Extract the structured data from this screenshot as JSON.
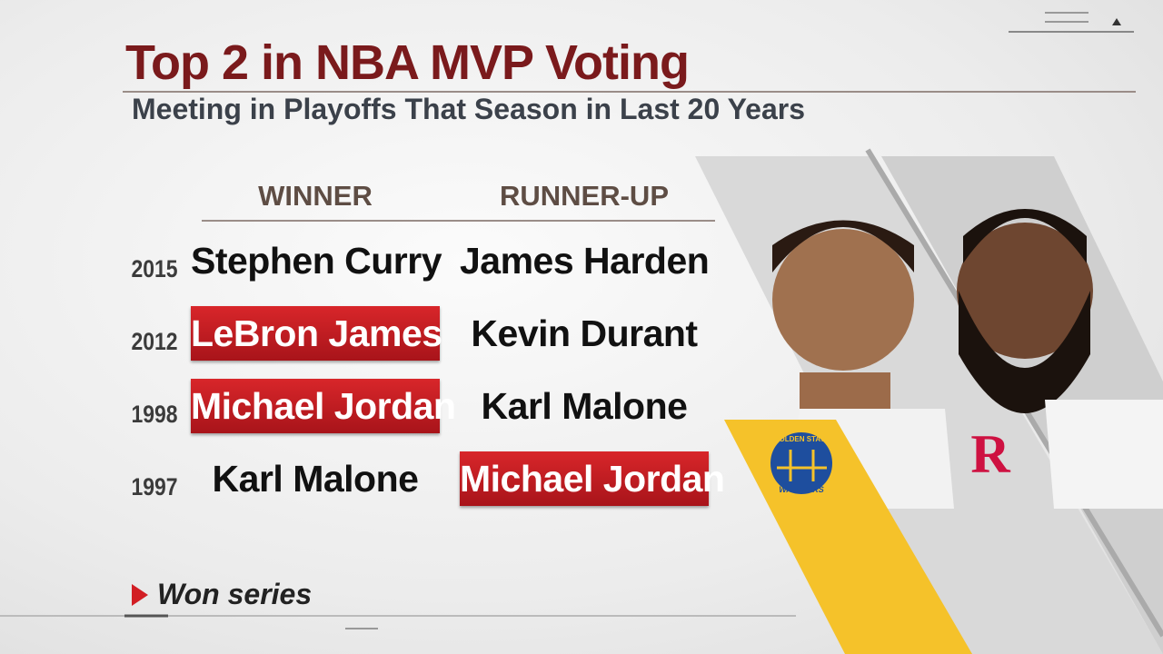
{
  "header": {
    "title": "Top 2 in NBA MVP Voting",
    "subtitle": "Meeting in Playoffs That Season in Last 20 Years"
  },
  "table": {
    "columns": [
      "WINNER",
      "RUNNER-UP"
    ],
    "rows": [
      {
        "year": "2015",
        "winner": "Stephen Curry",
        "runner_up": "James Harden",
        "won_series": null
      },
      {
        "year": "2012",
        "winner": "LeBron James",
        "runner_up": "Kevin Durant",
        "won_series": "winner"
      },
      {
        "year": "1998",
        "winner": "Michael Jordan",
        "runner_up": "Karl Malone",
        "won_series": "winner"
      },
      {
        "year": "1997",
        "winner": "Karl Malone",
        "runner_up": "Michael Jordan",
        "won_series": "runner_up"
      }
    ]
  },
  "legend": {
    "label": "Won series"
  },
  "logos": {
    "warriors_top": "GOLDEN STATE",
    "warriors_bottom": "WARRIORS"
  }
}
